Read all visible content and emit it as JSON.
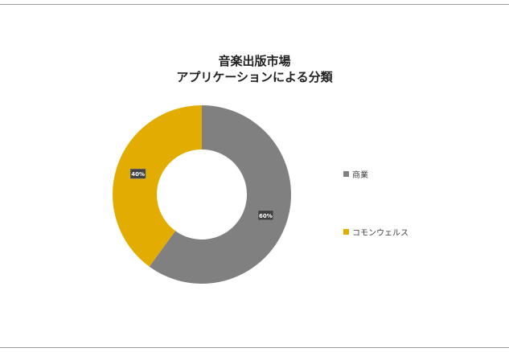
{
  "chart_data": {
    "type": "pie",
    "variant": "donut",
    "title_lines": [
      "音楽出版市場",
      "アプリケーションによる分類"
    ],
    "slices": [
      {
        "label": "商業",
        "value": 60,
        "display": "60%",
        "color": "#808080"
      },
      {
        "label": "コモンウェルス",
        "value": 40,
        "display": "40%",
        "color": "#e3ac00"
      }
    ],
    "legend_position": "right",
    "start_angle_deg": 0,
    "direction": "clockwise"
  }
}
